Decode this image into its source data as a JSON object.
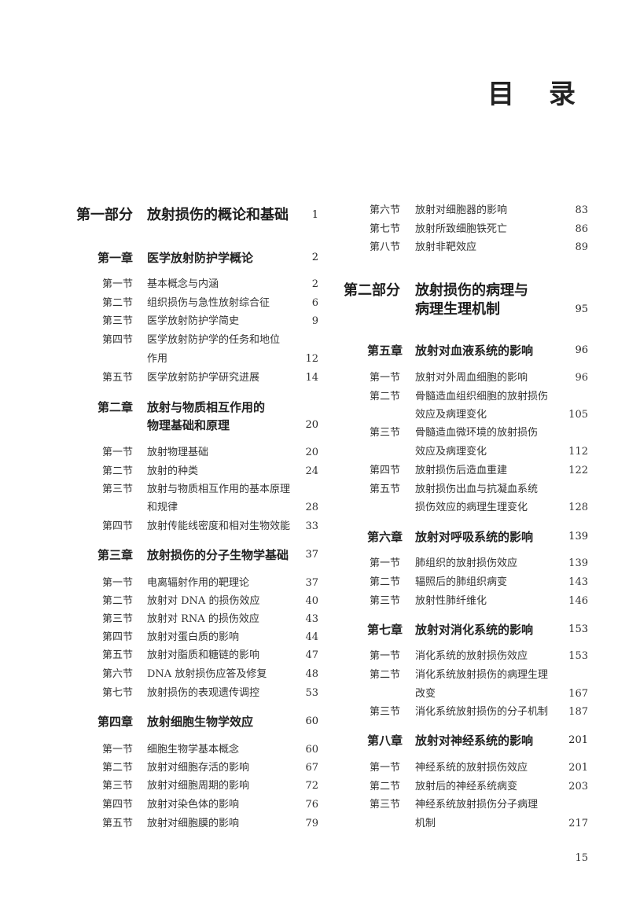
{
  "title": "目 录",
  "page_number": "15",
  "left_column": [
    {
      "type": "part",
      "label": "第一部分",
      "lines": [
        "放射损伤的概论和基础"
      ],
      "page": "1"
    },
    {
      "type": "chap",
      "label": "第一章",
      "lines": [
        "医学放射防护学概论"
      ],
      "page": "2"
    },
    {
      "type": "sec",
      "label": "第一节",
      "lines": [
        "基本概念与内涵"
      ],
      "page": "2"
    },
    {
      "type": "sec",
      "label": "第二节",
      "lines": [
        "组织损伤与急性放射综合征"
      ],
      "page": "6"
    },
    {
      "type": "sec",
      "label": "第三节",
      "lines": [
        "医学放射防护学简史"
      ],
      "page": "9"
    },
    {
      "type": "sec",
      "label": "第四节",
      "lines": [
        "医学放射防护学的任务和地位",
        "作用"
      ],
      "page": "12"
    },
    {
      "type": "sec",
      "label": "第五节",
      "lines": [
        "医学放射防护学研究进展"
      ],
      "page": "14"
    },
    {
      "type": "chap",
      "label": "第二章",
      "lines": [
        "放射与物质相互作用的",
        "物理基础和原理"
      ],
      "page": "20"
    },
    {
      "type": "sec",
      "label": "第一节",
      "lines": [
        "放射物理基础"
      ],
      "page": "20"
    },
    {
      "type": "sec",
      "label": "第二节",
      "lines": [
        "放射的种类"
      ],
      "page": "24"
    },
    {
      "type": "sec",
      "label": "第三节",
      "lines": [
        "放射与物质相互作用的基本原理",
        "和规律"
      ],
      "page": "28"
    },
    {
      "type": "sec",
      "label": "第四节",
      "lines": [
        "放射传能线密度和相对生物效能"
      ],
      "page": "33"
    },
    {
      "type": "chap",
      "label": "第三章",
      "lines": [
        "放射损伤的分子生物学基础"
      ],
      "page": "37"
    },
    {
      "type": "sec",
      "label": "第一节",
      "lines": [
        "电离辐射作用的靶理论"
      ],
      "page": "37"
    },
    {
      "type": "sec",
      "label": "第二节",
      "lines": [
        "放射对 DNA 的损伤效应"
      ],
      "page": "40"
    },
    {
      "type": "sec",
      "label": "第三节",
      "lines": [
        "放射对 RNA 的损伤效应"
      ],
      "page": "43"
    },
    {
      "type": "sec",
      "label": "第四节",
      "lines": [
        "放射对蛋白质的影响"
      ],
      "page": "44"
    },
    {
      "type": "sec",
      "label": "第五节",
      "lines": [
        "放射对脂质和糖链的影响"
      ],
      "page": "47"
    },
    {
      "type": "sec",
      "label": "第六节",
      "lines": [
        "DNA 放射损伤应答及修复"
      ],
      "page": "48"
    },
    {
      "type": "sec",
      "label": "第七节",
      "lines": [
        "放射损伤的表观遗传调控"
      ],
      "page": "53"
    },
    {
      "type": "chap",
      "label": "第四章",
      "lines": [
        "放射细胞生物学效应"
      ],
      "page": "60"
    },
    {
      "type": "sec",
      "label": "第一节",
      "lines": [
        "细胞生物学基本概念"
      ],
      "page": "60"
    },
    {
      "type": "sec",
      "label": "第二节",
      "lines": [
        "放射对细胞存活的影响"
      ],
      "page": "67"
    },
    {
      "type": "sec",
      "label": "第三节",
      "lines": [
        "放射对细胞周期的影响"
      ],
      "page": "72"
    },
    {
      "type": "sec",
      "label": "第四节",
      "lines": [
        "放射对染色体的影响"
      ],
      "page": "76"
    },
    {
      "type": "sec",
      "label": "第五节",
      "lines": [
        "放射对细胞膜的影响"
      ],
      "page": "79"
    }
  ],
  "right_column": [
    {
      "type": "sec",
      "label": "第六节",
      "lines": [
        "放射对细胞器的影响"
      ],
      "page": "83"
    },
    {
      "type": "sec",
      "label": "第七节",
      "lines": [
        "放射所致细胞铁死亡"
      ],
      "page": "86"
    },
    {
      "type": "sec",
      "label": "第八节",
      "lines": [
        "放射非靶效应"
      ],
      "page": "89"
    },
    {
      "type": "part",
      "label": "第二部分",
      "lines": [
        "放射损伤的病理与",
        "病理生理机制"
      ],
      "page": "95"
    },
    {
      "type": "chap",
      "label": "第五章",
      "lines": [
        "放射对血液系统的影响"
      ],
      "page": "96"
    },
    {
      "type": "sec",
      "label": "第一节",
      "lines": [
        "放射对外周血细胞的影响"
      ],
      "page": "96"
    },
    {
      "type": "sec",
      "label": "第二节",
      "lines": [
        "骨髓造血组织细胞的放射损伤",
        "效应及病理变化"
      ],
      "page": "105"
    },
    {
      "type": "sec",
      "label": "第三节",
      "lines": [
        "骨髓造血微环境的放射损伤",
        "效应及病理变化"
      ],
      "page": "112"
    },
    {
      "type": "sec",
      "label": "第四节",
      "lines": [
        "放射损伤后造血重建"
      ],
      "page": "122"
    },
    {
      "type": "sec",
      "label": "第五节",
      "lines": [
        "放射损伤出血与抗凝血系统",
        "损伤效应的病理生理变化"
      ],
      "page": "128"
    },
    {
      "type": "chap",
      "label": "第六章",
      "lines": [
        "放射对呼吸系统的影响"
      ],
      "page": "139"
    },
    {
      "type": "sec",
      "label": "第一节",
      "lines": [
        "肺组织的放射损伤效应"
      ],
      "page": "139"
    },
    {
      "type": "sec",
      "label": "第二节",
      "lines": [
        "辐照后的肺组织病变"
      ],
      "page": "143"
    },
    {
      "type": "sec",
      "label": "第三节",
      "lines": [
        "放射性肺纤维化"
      ],
      "page": "146"
    },
    {
      "type": "chap",
      "label": "第七章",
      "lines": [
        "放射对消化系统的影响"
      ],
      "page": "153"
    },
    {
      "type": "sec",
      "label": "第一节",
      "lines": [
        "消化系统的放射损伤效应"
      ],
      "page": "153"
    },
    {
      "type": "sec",
      "label": "第二节",
      "lines": [
        "消化系统放射损伤的病理生理",
        "改变"
      ],
      "page": "167"
    },
    {
      "type": "sec",
      "label": "第三节",
      "lines": [
        "消化系统放射损伤的分子机制"
      ],
      "page": "187"
    },
    {
      "type": "chap",
      "label": "第八章",
      "lines": [
        "放射对神经系统的影响"
      ],
      "page": "201"
    },
    {
      "type": "sec",
      "label": "第一节",
      "lines": [
        "神经系统的放射损伤效应"
      ],
      "page": "201"
    },
    {
      "type": "sec",
      "label": "第二节",
      "lines": [
        "放射后的神经系统病变"
      ],
      "page": "203"
    },
    {
      "type": "sec",
      "label": "第三节",
      "lines": [
        "神经系统放射损伤分子病理",
        "机制"
      ],
      "page": "217"
    }
  ]
}
